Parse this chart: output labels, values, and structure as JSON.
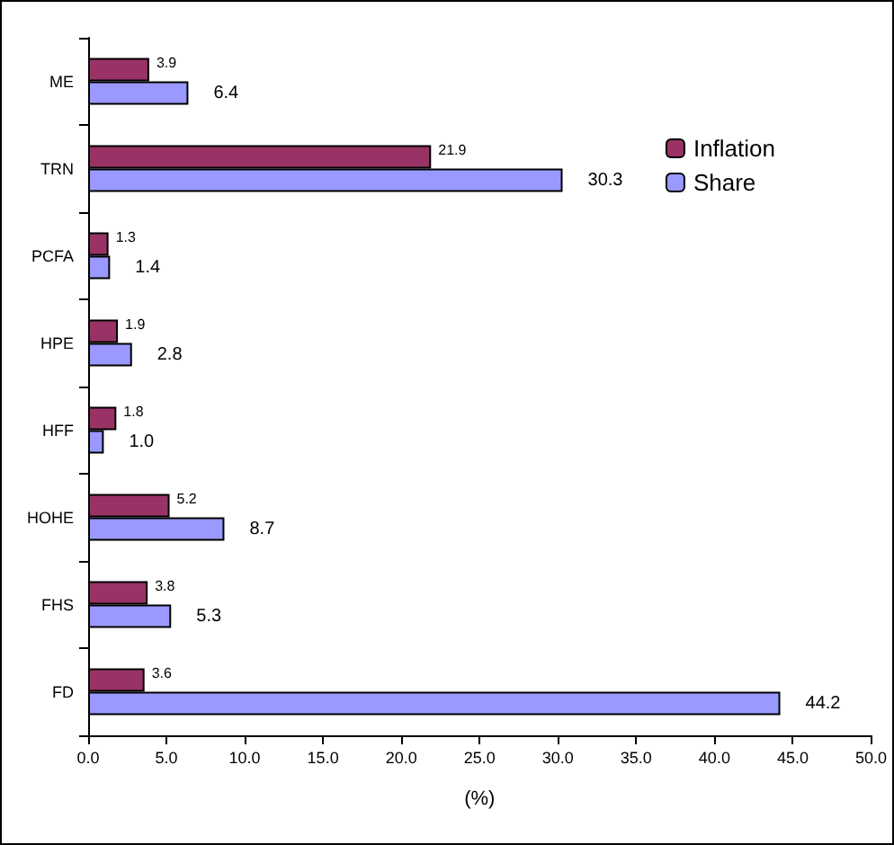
{
  "chart_data": {
    "type": "bar",
    "orientation": "horizontal",
    "xlabel": "(%)",
    "categories": [
      "ME",
      "TRN",
      "PCFA",
      "HPE",
      "HFF",
      "HOHE",
      "FHS",
      "FD"
    ],
    "series": [
      {
        "name": "Inflation",
        "color": "#993366",
        "values": [
          3.9,
          21.9,
          1.3,
          1.9,
          1.8,
          5.2,
          3.8,
          3.6
        ],
        "value_labels": [
          "3.9",
          "21.9",
          "1.3",
          "1.9",
          "1.8",
          "5.2",
          "3.8",
          "3.6"
        ]
      },
      {
        "name": "Share",
        "color": "#9999ff",
        "values": [
          6.4,
          30.3,
          1.4,
          2.8,
          1.0,
          8.7,
          5.3,
          44.2
        ],
        "value_labels": [
          "6.4",
          "30.3",
          "1.4",
          "2.8",
          "1.0",
          "8.7",
          "5.3",
          "44.2"
        ]
      }
    ],
    "xlim": [
      0,
      50
    ],
    "xticks": [
      {
        "value": 0,
        "label": "0.0"
      },
      {
        "value": 5,
        "label": "5.0"
      },
      {
        "value": 10,
        "label": "10.0"
      },
      {
        "value": 15,
        "label": "15.0"
      },
      {
        "value": 20,
        "label": "20.0"
      },
      {
        "value": 25,
        "label": "25.0"
      },
      {
        "value": 30,
        "label": "30.0"
      },
      {
        "value": 35,
        "label": "35.0"
      },
      {
        "value": 40,
        "label": "40.0"
      },
      {
        "value": 45,
        "label": "45.0"
      },
      {
        "value": 50,
        "label": "50.0"
      }
    ],
    "legend": "top right",
    "grid": false
  }
}
